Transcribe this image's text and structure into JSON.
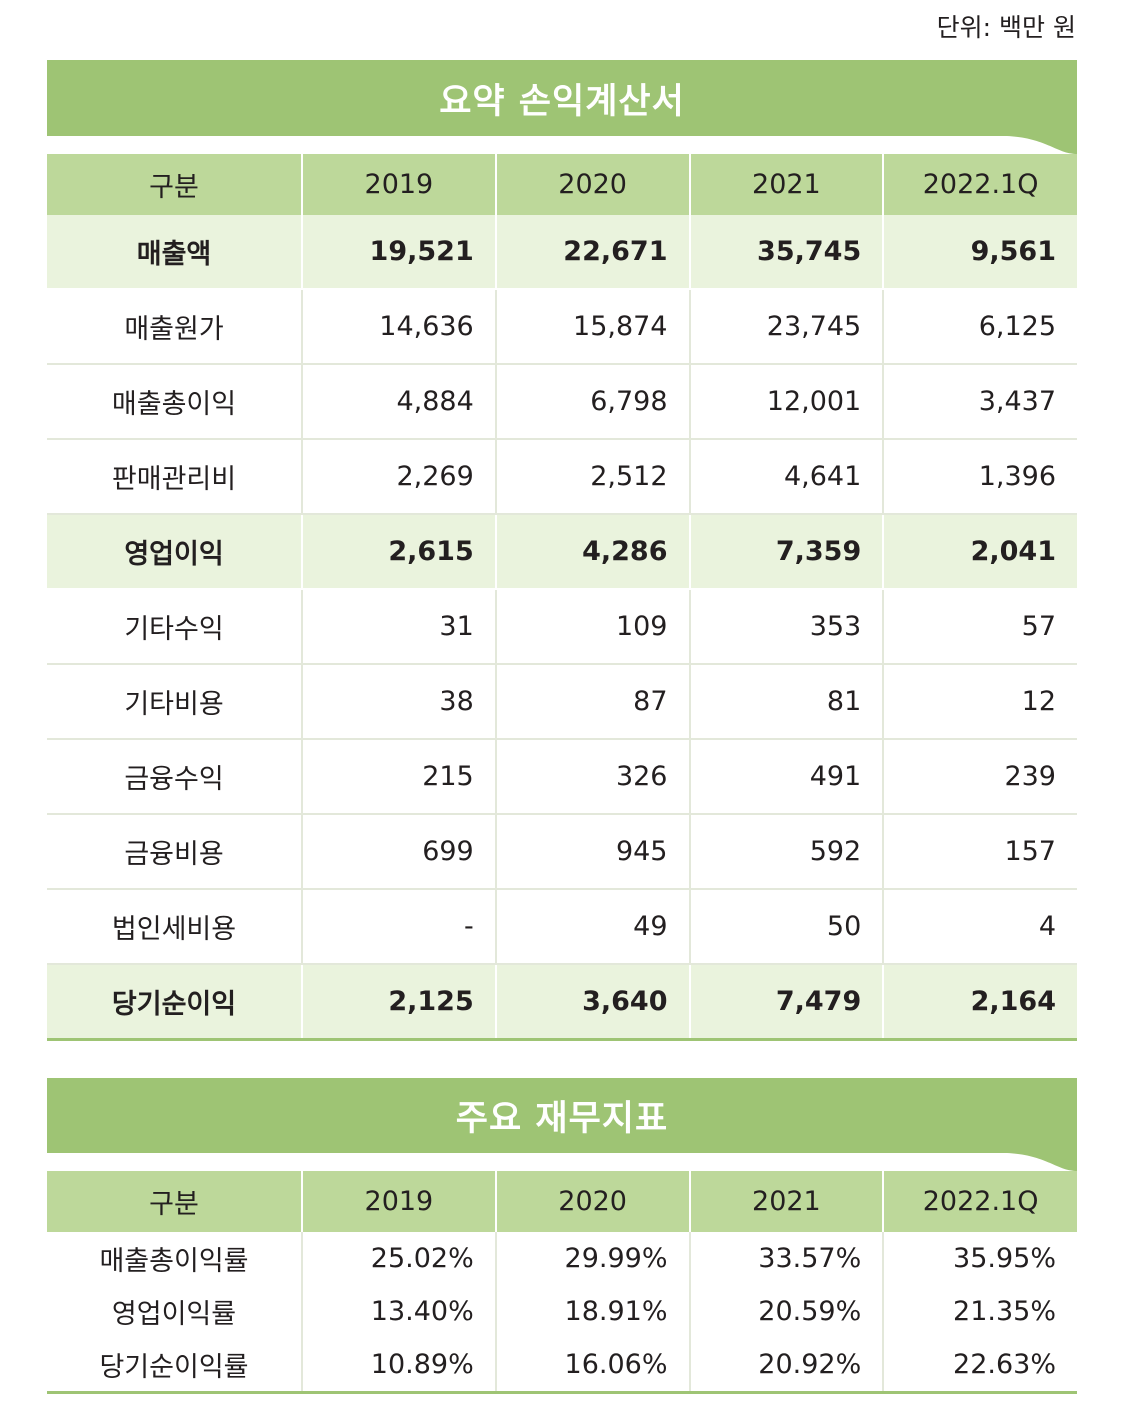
{
  "unit_label": "단위: 백만 원",
  "income_statement": {
    "title": "요약 손익계산서",
    "headers": [
      "구분",
      "2019",
      "2020",
      "2021",
      "2022.1Q"
    ],
    "rows": [
      {
        "label": "매출액",
        "values": [
          "19,521",
          "22,671",
          "35,745",
          "9,561"
        ],
        "highlight": true
      },
      {
        "label": "매출원가",
        "values": [
          "14,636",
          "15,874",
          "23,745",
          "6,125"
        ],
        "highlight": false
      },
      {
        "label": "매출총이익",
        "values": [
          "4,884",
          "6,798",
          "12,001",
          "3,437"
        ],
        "highlight": false
      },
      {
        "label": "판매관리비",
        "values": [
          "2,269",
          "2,512",
          "4,641",
          "1,396"
        ],
        "highlight": false
      },
      {
        "label": "영업이익",
        "values": [
          "2,615",
          "4,286",
          "7,359",
          "2,041"
        ],
        "highlight": true
      },
      {
        "label": "기타수익",
        "values": [
          "31",
          "109",
          "353",
          "57"
        ],
        "highlight": false
      },
      {
        "label": "기타비용",
        "values": [
          "38",
          "87",
          "81",
          "12"
        ],
        "highlight": false
      },
      {
        "label": "금융수익",
        "values": [
          "215",
          "326",
          "491",
          "239"
        ],
        "highlight": false
      },
      {
        "label": "금융비용",
        "values": [
          "699",
          "945",
          "592",
          "157"
        ],
        "highlight": false
      },
      {
        "label": "법인세비용",
        "values": [
          "-",
          "49",
          "50",
          "4"
        ],
        "highlight": false
      },
      {
        "label": "당기순이익",
        "values": [
          "2,125",
          "3,640",
          "7,479",
          "2,164"
        ],
        "highlight": true
      }
    ]
  },
  "financial_indicators": {
    "title": "주요 재무지표",
    "headers": [
      "구분",
      "2019",
      "2020",
      "2021",
      "2022.1Q"
    ],
    "rows": [
      {
        "label": "매출총이익률",
        "values": [
          "25.02%",
          "29.99%",
          "33.57%",
          "35.95%"
        ]
      },
      {
        "label": "영업이익률",
        "values": [
          "13.40%",
          "18.91%",
          "20.59%",
          "21.35%"
        ]
      },
      {
        "label": "당기순이익률",
        "values": [
          "10.89%",
          "16.06%",
          "20.92%",
          "22.63%"
        ]
      }
    ]
  },
  "colors": {
    "banner": "#9ec474",
    "header": "#bdd89a",
    "highlight_row": "#eaf3dd"
  }
}
